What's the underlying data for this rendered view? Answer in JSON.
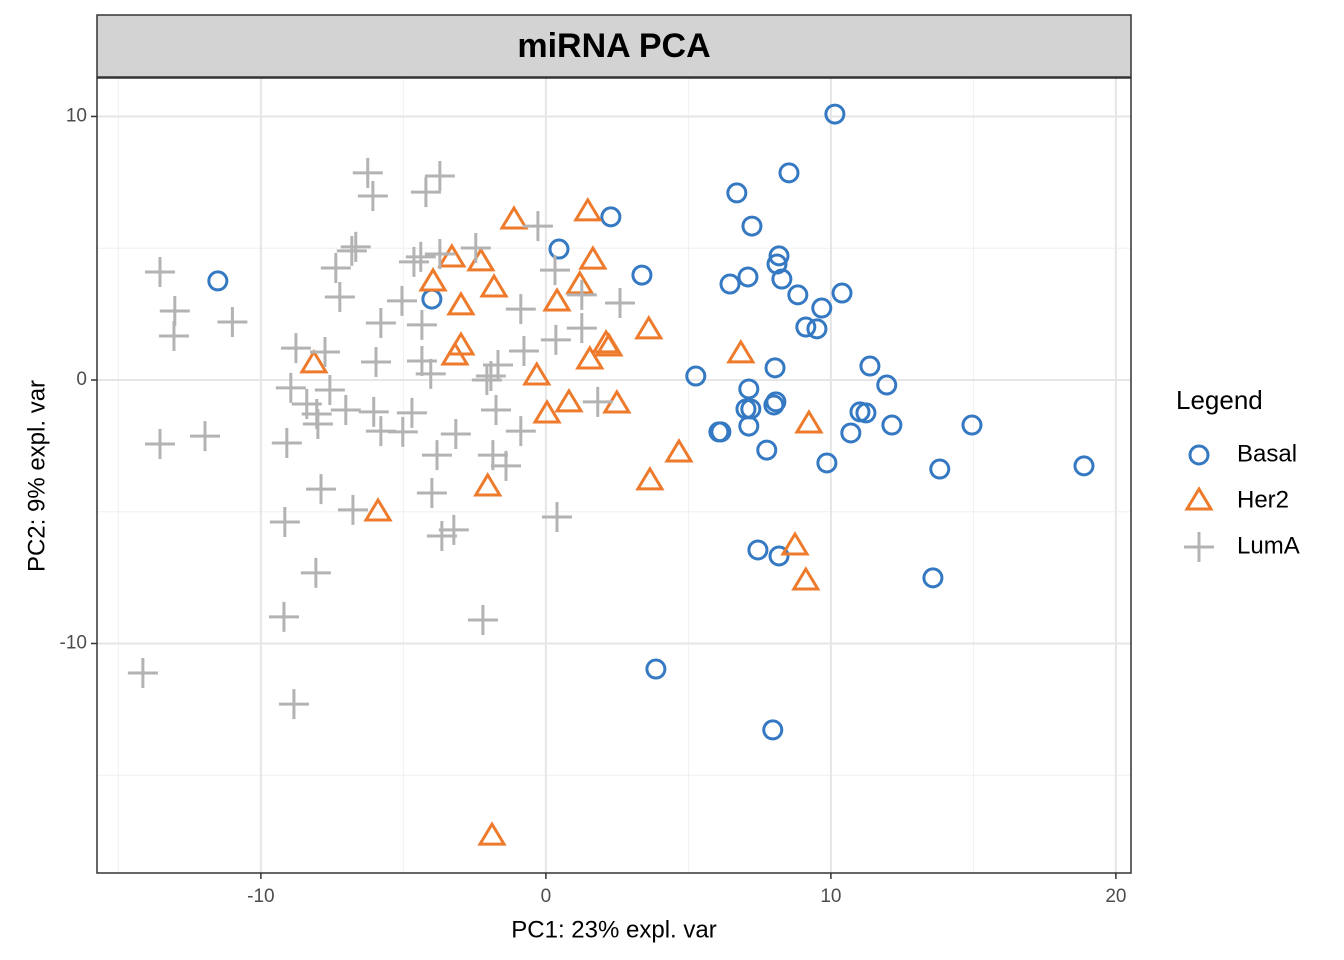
{
  "chart_data": {
    "type": "scatter",
    "title": "miRNA PCA",
    "xlabel": "PC1: 23% expl. var",
    "ylabel": "PC2: 9% expl. var",
    "legend_title": "Legend",
    "legend_position": "right",
    "grid": true,
    "xlim": [
      -15.75,
      20.53
    ],
    "ylim": [
      -18.71,
      11.46
    ],
    "xticks": [
      -10,
      0,
      10,
      20
    ],
    "yticks": [
      -10,
      0,
      10
    ],
    "xminor": [
      -15,
      -5,
      5,
      15
    ],
    "yminor": [
      -15,
      -5,
      5
    ],
    "series": [
      {
        "name": "Basal",
        "color": "#3579C3",
        "marker": "circle",
        "x": [
          10.14,
          8.53,
          6.7,
          2.28,
          7.23,
          0.46,
          8.18,
          8.11,
          -11.51,
          3.37,
          7.09,
          6.46,
          8.28,
          10.39,
          8.84,
          9.68,
          -4.0,
          9.12,
          9.51,
          11.37,
          8.04,
          5.26,
          11.96,
          7.12,
          8.07,
          8.0,
          7.02,
          7.19,
          11.02,
          11.23,
          6.14,
          6.07,
          7.12,
          12.14,
          14.95,
          10.7,
          7.75,
          9.86,
          13.82,
          18.88,
          7.44,
          8.18,
          13.58,
          3.86,
          7.96
        ],
        "y": [
          10.09,
          7.86,
          7.1,
          6.19,
          5.84,
          4.97,
          4.71,
          4.4,
          3.76,
          3.98,
          3.91,
          3.64,
          3.83,
          3.3,
          3.23,
          2.73,
          3.07,
          2.01,
          1.94,
          0.53,
          0.46,
          0.15,
          -0.19,
          -0.34,
          -0.83,
          -0.95,
          -1.1,
          -1.1,
          -1.21,
          -1.25,
          -1.97,
          -1.97,
          -1.75,
          -1.71,
          -1.71,
          -2.01,
          -2.66,
          -3.15,
          -3.38,
          -3.26,
          -6.45,
          -6.68,
          -7.51,
          -10.97,
          -13.28
        ]
      },
      {
        "name": "Her2",
        "color": "#EE7A2C",
        "marker": "triangle",
        "x": [
          -1.12,
          1.47,
          -3.3,
          -2.28,
          1.65,
          -3.96,
          -1.82,
          -2.98,
          0.39,
          1.19,
          3.61,
          -2.98,
          -3.19,
          -8.14,
          2.11,
          2.21,
          1.54,
          6.84,
          -0.32,
          0.81,
          0.04,
          2.49,
          9.23,
          4.67,
          3.65,
          -2.04,
          -5.89,
          8.74,
          9.12,
          -1.89
        ],
        "y": [
          6.07,
          6.38,
          4.63,
          4.48,
          4.55,
          3.72,
          3.49,
          2.81,
          2.96,
          3.61,
          1.9,
          1.29,
          0.91,
          0.61,
          1.37,
          1.25,
          0.76,
          0.99,
          0.15,
          -0.87,
          -1.29,
          -0.91,
          -1.67,
          -2.77,
          -3.83,
          -4.06,
          -5.01,
          -6.3,
          -7.63,
          -17.31
        ]
      },
      {
        "name": "LumA",
        "color": "#B3B3B3",
        "marker": "plus",
        "x": [
          -6.25,
          -3.72,
          -6.07,
          -4.21,
          -0.28,
          -6.67,
          -6.81,
          -2.46,
          -4.39,
          -4.63,
          -7.37,
          -13.54,
          0.32,
          -13.02,
          -11.0,
          -13.05,
          -7.23,
          -5.05,
          2.6,
          -0.88,
          1.26,
          -5.79,
          -4.35,
          0.35,
          1.26,
          -0.77,
          -8.77,
          -7.75,
          -5.96,
          -4.35,
          -1.68,
          -4.04,
          -1.93,
          -2.07,
          -8.95,
          -7.58,
          -8.39,
          -8.04,
          -8.0,
          -7.02,
          -6.04,
          -4.7,
          -1.75,
          1.82,
          -5.79,
          -5.02,
          -3.16,
          -0.88,
          -13.54,
          -11.96,
          -9.09,
          -3.82,
          -1.86,
          -1.4,
          -7.89,
          -4.0,
          -6.77,
          -9.16,
          -3.23,
          -3.65,
          0.39,
          -8.07,
          -9.19,
          -2.21,
          -14.14,
          -8.84,
          -3.72
        ],
        "y": [
          7.86,
          7.74,
          6.98,
          7.13,
          5.84,
          5.05,
          4.9,
          5.01,
          4.67,
          4.48,
          4.25,
          4.1,
          4.17,
          2.62,
          2.2,
          1.67,
          3.15,
          3.0,
          2.92,
          2.69,
          3.23,
          2.16,
          2.09,
          1.52,
          1.97,
          1.1,
          1.21,
          1.06,
          0.68,
          0.72,
          0.57,
          0.23,
          0.15,
          0.0,
          -0.3,
          -0.38,
          -0.91,
          -1.29,
          -1.67,
          -1.14,
          -1.21,
          -1.25,
          -1.14,
          -0.83,
          -1.94,
          -1.97,
          -2.05,
          -1.94,
          -2.43,
          -2.13,
          -2.39,
          -2.85,
          -2.85,
          -3.26,
          -4.14,
          -4.29,
          -4.93,
          -5.39,
          -5.69,
          -5.92,
          -5.2,
          -7.32,
          -8.99,
          -9.11,
          -11.12,
          -12.3,
          4.78
        ]
      }
    ]
  }
}
